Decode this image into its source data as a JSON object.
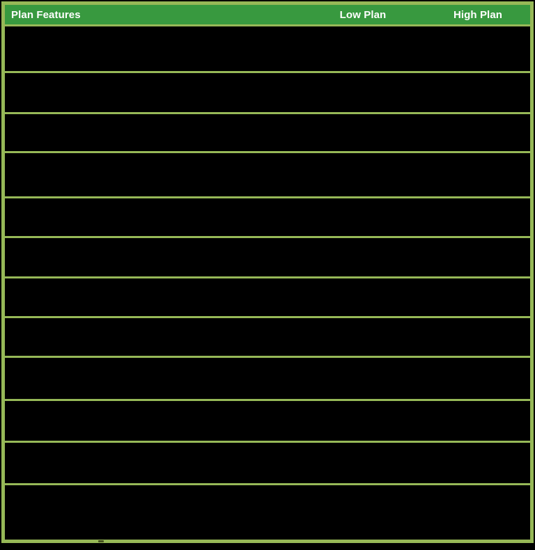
{
  "colors": {
    "header_bg": "#38993f",
    "grid_border": "#96b857",
    "header_text": "#ffffff",
    "row_bg": "#000000",
    "page_bg": "#000000"
  },
  "table": {
    "headers": {
      "feature": "Plan Features",
      "low": "Low Plan",
      "high": "High Plan"
    },
    "rows": [
      {
        "feature": "",
        "low": "",
        "high": ""
      },
      {
        "feature": "",
        "low": "",
        "high": ""
      },
      {
        "feature": "",
        "low": "",
        "high": ""
      },
      {
        "feature": "",
        "low": "",
        "high": ""
      },
      {
        "feature": "",
        "low": "",
        "high": ""
      },
      {
        "feature": "",
        "low": "",
        "high": ""
      },
      {
        "feature": "",
        "low": "",
        "high": ""
      },
      {
        "feature": "",
        "low": "",
        "high": ""
      },
      {
        "feature": "",
        "low": "",
        "high": ""
      },
      {
        "feature": "",
        "low": "",
        "high": ""
      },
      {
        "feature": "",
        "low": "",
        "high": ""
      },
      {
        "feature": "",
        "low": "",
        "high": ""
      }
    ]
  }
}
